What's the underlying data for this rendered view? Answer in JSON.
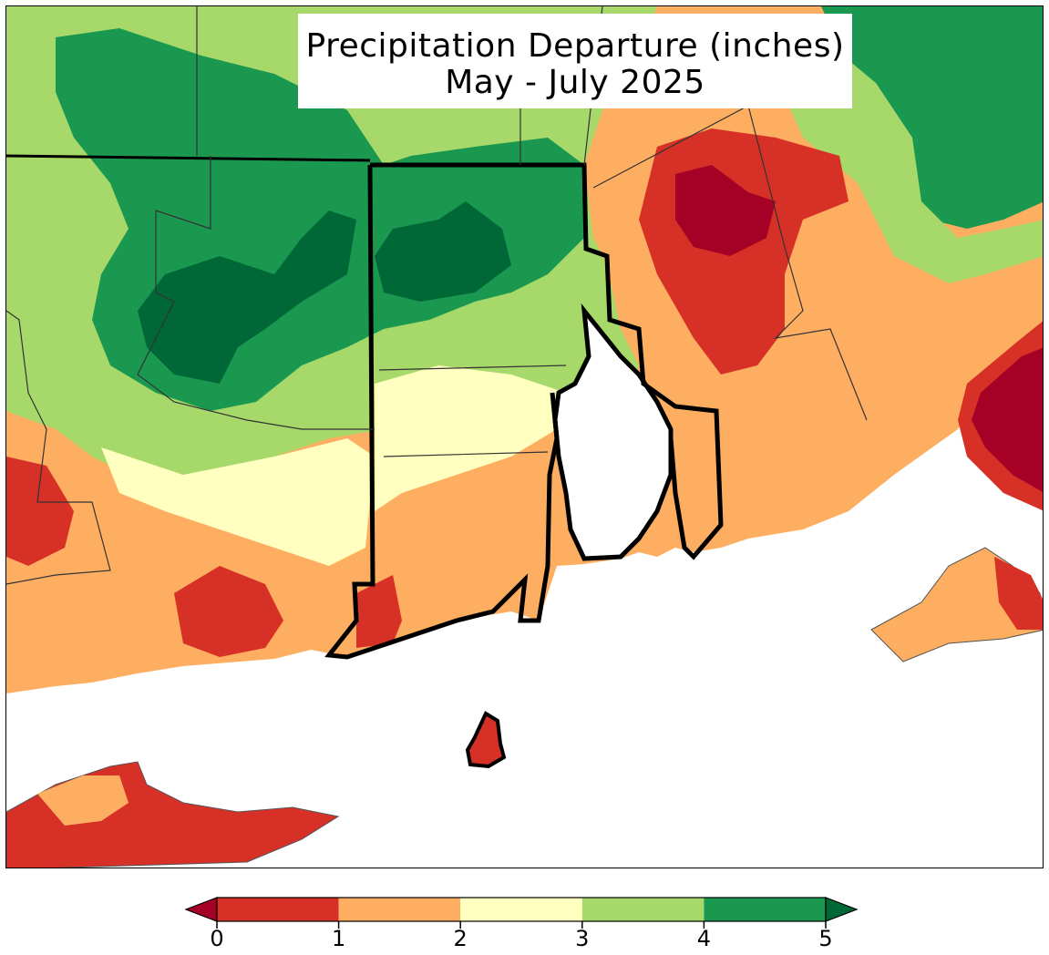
{
  "title": {
    "line1": "Precipitation Departure (inches)",
    "line2": "May - July 2025"
  },
  "colorbar": {
    "ticks": [
      "0",
      "1",
      "2",
      "3",
      "4",
      "5"
    ],
    "bins": [
      {
        "range": "<0",
        "color": "#a50026",
        "extend": "min"
      },
      {
        "range": "0-1",
        "color": "#d73027"
      },
      {
        "range": "1-2",
        "color": "#fdae61"
      },
      {
        "range": "2-3",
        "color": "#ffffbf"
      },
      {
        "range": "3-4",
        "color": "#a6d96a"
      },
      {
        "range": "4-5",
        "color": "#1a9850"
      },
      {
        "range": ">5",
        "color": "#006837",
        "extend": "max"
      }
    ]
  },
  "map": {
    "region": "Southern New England (Rhode Island, eastern Connecticut, southeastern Massachusetts)",
    "ocean_color": "#ffffff",
    "state_border_color": "#000000",
    "county_border_color": "#333333"
  }
}
